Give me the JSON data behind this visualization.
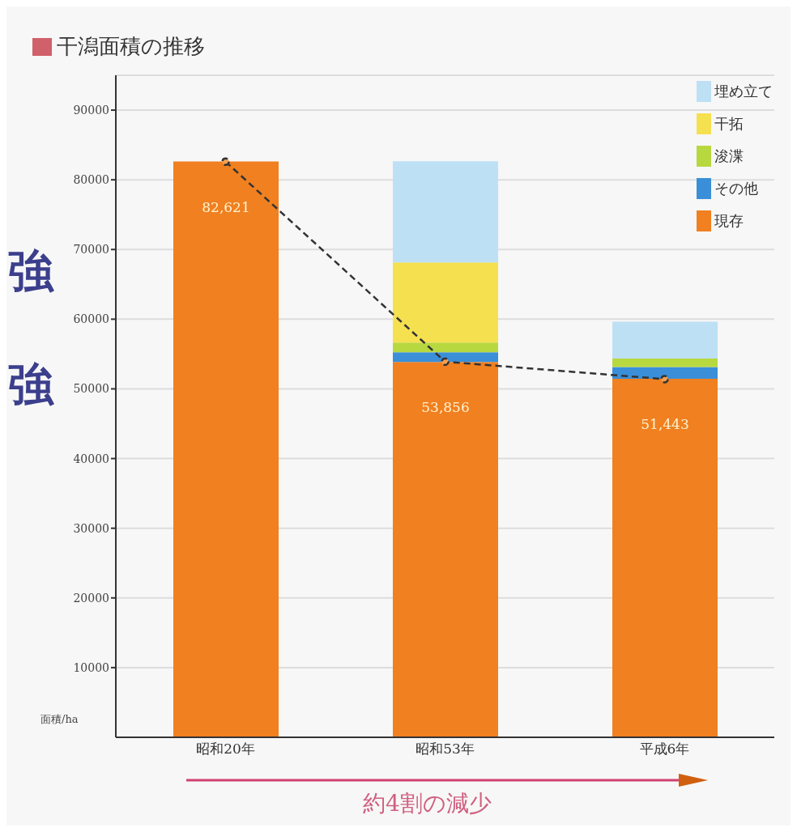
{
  "chart_data": {
    "type": "bar",
    "title": "干潟面積の推移",
    "ylabel": "面積/ha",
    "categories": [
      "昭和20年",
      "昭和53年",
      "平成6年"
    ],
    "stacked": true,
    "series": [
      {
        "name": "現存",
        "color": "#f08020",
        "values": [
          82621,
          53856,
          51443
        ],
        "value_labels": [
          "82,621",
          "53,856",
          "51,443"
        ]
      },
      {
        "name": "その他",
        "color": "#3a8fd8",
        "values": [
          0,
          1400,
          1700
        ]
      },
      {
        "name": "浚渫",
        "color": "#b8d840",
        "values": [
          0,
          1400,
          1200
        ]
      },
      {
        "name": "干拓",
        "color": "#f5e050",
        "values": [
          0,
          11500,
          0
        ]
      },
      {
        "name": "埋め立て",
        "color": "#bde0f5",
        "values": [
          0,
          14500,
          5300
        ]
      },
      {
        "type": "line",
        "color": "#333333",
        "values": [
          82600,
          53900,
          51400
        ],
        "line_style": "dashed",
        "marker": "circle"
      }
    ],
    "ylim": [
      0,
      95000
    ],
    "yticks": [
      10000,
      20000,
      30000,
      40000,
      50000,
      60000,
      70000,
      80000,
      90000
    ],
    "grid": "y",
    "legend": "top right",
    "annotations": [
      "約4割の減少",
      "強",
      "強"
    ]
  }
}
